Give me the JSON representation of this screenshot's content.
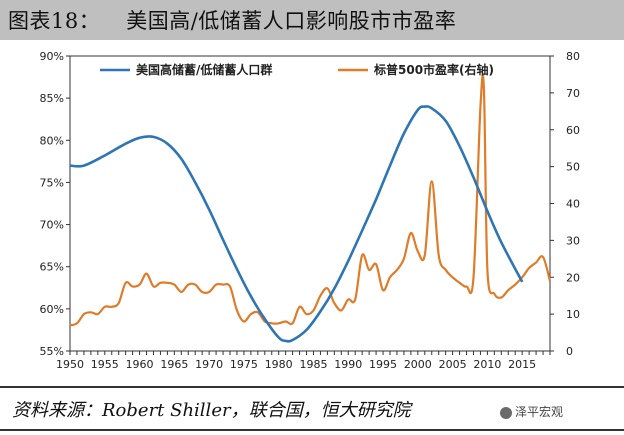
{
  "header": {
    "label": "图表18：",
    "title": "美国高/低储蓄人口影响股市市盈率"
  },
  "source": "资料来源：Robert Shiller，联合国，恒大研究院",
  "watermark": "泽平宏观",
  "colors": {
    "series1": "#2e75b6",
    "series2": "#e07b28",
    "axis": "#333333",
    "title_band": "#bfbfbf"
  },
  "chart_data": {
    "type": "line",
    "xlim": [
      1950,
      2019
    ],
    "x_ticks": [
      1950,
      1955,
      1960,
      1965,
      1970,
      1975,
      1980,
      1985,
      1990,
      1995,
      2000,
      2005,
      2010,
      2015
    ],
    "y_left": {
      "lim": [
        55,
        90
      ],
      "ticks": [
        55,
        60,
        65,
        70,
        75,
        80,
        85,
        90
      ],
      "tick_labels": [
        "55%",
        "60%",
        "65%",
        "70%",
        "75%",
        "80%",
        "85%",
        "90%"
      ]
    },
    "y_right": {
      "lim": [
        0,
        80
      ],
      "ticks": [
        0,
        10,
        20,
        30,
        40,
        50,
        60,
        70,
        80
      ],
      "tick_labels": [
        "0",
        "10",
        "20",
        "30",
        "40",
        "50",
        "60",
        "70",
        "80"
      ]
    },
    "legend_position": "top",
    "grid": false,
    "series": [
      {
        "name": "美国高储蓄/低储蓄人口群",
        "axis": "left",
        "x": [
          1950,
          1952,
          1955,
          1958,
          1960,
          1962,
          1964,
          1966,
          1968,
          1970,
          1972,
          1974,
          1976,
          1978,
          1980,
          1981,
          1982,
          1984,
          1986,
          1988,
          1990,
          1992,
          1994,
          1996,
          1998,
          2000,
          2001,
          2002,
          2004,
          2006,
          2008,
          2010,
          2012,
          2015
        ],
        "values": [
          77.0,
          77.0,
          78.2,
          79.6,
          80.3,
          80.4,
          79.6,
          77.8,
          75.0,
          71.8,
          68.2,
          64.7,
          61.5,
          58.8,
          56.6,
          56.2,
          56.3,
          57.5,
          59.7,
          62.4,
          65.7,
          69.3,
          73.0,
          77.0,
          80.8,
          83.6,
          84.0,
          83.8,
          82.3,
          79.3,
          75.6,
          71.6,
          67.9,
          63.2
        ]
      },
      {
        "name": "标普500市盈率(右轴)",
        "axis": "right",
        "x": [
          1950,
          1951,
          1952,
          1953,
          1954,
          1955,
          1956,
          1957,
          1958,
          1959,
          1960,
          1961,
          1962,
          1963,
          1964,
          1965,
          1966,
          1967,
          1968,
          1969,
          1970,
          1971,
          1972,
          1973,
          1974,
          1975,
          1976,
          1977,
          1978,
          1979,
          1980,
          1981,
          1982,
          1983,
          1984,
          1985,
          1986,
          1987,
          1988,
          1989,
          1990,
          1991,
          1992,
          1993,
          1994,
          1995,
          1996,
          1997,
          1998,
          1999,
          2000,
          2001,
          2002,
          2003,
          2004,
          2005,
          2006,
          2007,
          2008,
          2009,
          2009.5,
          2010,
          2011,
          2012,
          2013,
          2014,
          2015,
          2016,
          2017,
          2018,
          2019
        ],
        "values": [
          7,
          7.5,
          10,
          10.5,
          10,
          12,
          12,
          13,
          18.5,
          17.5,
          18,
          21,
          17.5,
          18.5,
          18.5,
          18,
          16,
          18,
          18,
          16,
          16,
          18,
          18,
          17.5,
          11,
          8,
          10,
          10.5,
          8,
          7.5,
          7.5,
          8,
          7.5,
          12,
          10,
          11,
          15,
          17,
          13,
          11,
          14,
          14,
          26,
          22,
          23.5,
          16.5,
          20,
          22,
          25,
          32,
          27,
          26,
          46,
          26,
          22,
          20,
          18.5,
          17.5,
          20,
          66,
          71,
          22,
          15.5,
          14.5,
          16.5,
          18,
          20,
          22.5,
          24,
          25.5,
          19
        ]
      }
    ]
  }
}
